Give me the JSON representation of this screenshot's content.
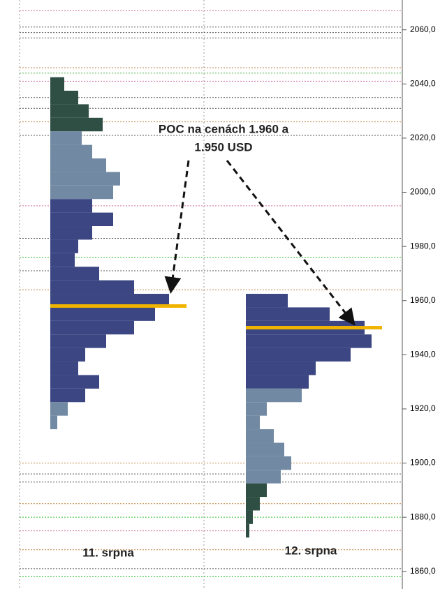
{
  "chart_data": {
    "type": "volume-profile",
    "annotation": [
      "POC na cenách 1.960 a",
      "1.950 USD"
    ],
    "ylim": [
      1853.5,
      2071
    ],
    "yticks": [
      {
        "value": 2060,
        "label": "2060,0"
      },
      {
        "value": 2040,
        "label": "2040,0"
      },
      {
        "value": 2020,
        "label": "2020,0"
      },
      {
        "value": 2000,
        "label": "2000,0"
      },
      {
        "value": 1980,
        "label": "1980,0"
      },
      {
        "value": 1960,
        "label": "1960,0"
      },
      {
        "value": 1940,
        "label": "1940,0"
      },
      {
        "value": 1920,
        "label": "1920,0"
      },
      {
        "value": 1900,
        "label": "1900,0"
      },
      {
        "value": 1880,
        "label": "1880,0"
      },
      {
        "value": 1860,
        "label": "1860,0"
      }
    ],
    "profiles": [
      {
        "name": "11. srpna",
        "prices": [
          2040,
          2035,
          2030,
          2025,
          2020,
          2015,
          2010,
          2005,
          2000,
          1995,
          1990,
          1985,
          1980,
          1975,
          1970,
          1965,
          1960,
          1955,
          1950,
          1945,
          1940,
          1935,
          1930,
          1925,
          1920,
          1915
        ],
        "values": [
          20,
          40,
          55,
          75,
          45,
          60,
          80,
          100,
          90,
          60,
          90,
          60,
          40,
          35,
          70,
          120,
          170,
          150,
          120,
          80,
          50,
          40,
          70,
          50,
          25,
          10
        ],
        "colors": [
          "#2f4f45",
          "#2f4f45",
          "#2f4f45",
          "#2f4f45",
          "#7189a3",
          "#7189a3",
          "#7189a3",
          "#7189a3",
          "#7189a3",
          "#3b4682",
          "#3b4682",
          "#3b4682",
          "#3b4682",
          "#3b4682",
          "#3b4682",
          "#3b4682",
          "#3b4682",
          "#3b4682",
          "#3b4682",
          "#3b4682",
          "#3b4682",
          "#3b4682",
          "#3b4682",
          "#3b4682",
          "#7189a3",
          "#7189a3"
        ],
        "poc": {
          "price": 1958,
          "volume": 195
        }
      },
      {
        "name": "12. srpna",
        "prices": [
          1960,
          1955,
          1950,
          1945,
          1940,
          1935,
          1930,
          1925,
          1920,
          1915,
          1910,
          1905,
          1900,
          1895,
          1890,
          1885,
          1880,
          1875
        ],
        "values": [
          60,
          120,
          170,
          180,
          150,
          100,
          90,
          80,
          30,
          20,
          40,
          55,
          65,
          50,
          30,
          20,
          10,
          5
        ],
        "colors": [
          "#3b4682",
          "#3b4682",
          "#3b4682",
          "#3b4682",
          "#3b4682",
          "#3b4682",
          "#3b4682",
          "#7189a3",
          "#7189a3",
          "#7189a3",
          "#7189a3",
          "#7189a3",
          "#7189a3",
          "#7189a3",
          "#2f4f45",
          "#2f4f45",
          "#2f4f45",
          "#2f4f45"
        ],
        "poc": {
          "price": 1950,
          "volume": 195
        }
      }
    ],
    "poc_color": "#f0b400",
    "levels": [
      {
        "price": 2067,
        "color": "#d070a0"
      },
      {
        "price": 2061,
        "color": "#555555"
      },
      {
        "price": 2059,
        "color": "#555555"
      },
      {
        "price": 2057,
        "color": "#555555"
      },
      {
        "price": 2046,
        "color": "#c08040"
      },
      {
        "price": 2044,
        "color": "#40b040"
      },
      {
        "price": 2041,
        "color": "#d070a0"
      },
      {
        "price": 2035,
        "color": "#555555"
      },
      {
        "price": 2031,
        "color": "#555555"
      },
      {
        "price": 2026,
        "color": "#c08040"
      },
      {
        "price": 2021,
        "color": "#555555"
      },
      {
        "price": 1995,
        "color": "#d070a0"
      },
      {
        "price": 1983,
        "color": "#555555"
      },
      {
        "price": 1976,
        "color": "#30c030"
      },
      {
        "price": 1971,
        "color": "#555555"
      },
      {
        "price": 1964,
        "color": "#c08040"
      },
      {
        "price": 1900,
        "color": "#c08040"
      },
      {
        "price": 1896,
        "color": "#555555"
      },
      {
        "price": 1893,
        "color": "#555555"
      },
      {
        "price": 1885,
        "color": "#c08040"
      },
      {
        "price": 1880,
        "color": "#30c030"
      },
      {
        "price": 1875,
        "color": "#d070a0"
      },
      {
        "price": 1868,
        "color": "#c08040"
      },
      {
        "price": 1861,
        "color": "#555555"
      },
      {
        "price": 1858,
        "color": "#30c030"
      }
    ]
  }
}
